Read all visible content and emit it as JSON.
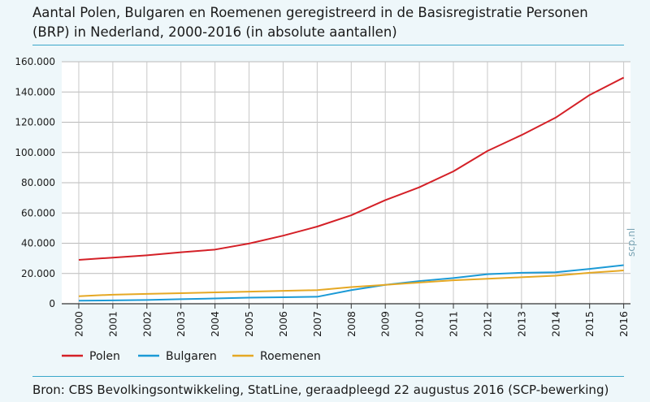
{
  "header": {
    "title": "Aantal Polen, Bulgaren en Roemenen geregistreerd in de Basisregistratie Personen (BRP) in Nederland, 2000-2016 (in absolute aantallen)"
  },
  "footer": {
    "source": "Bron: CBS Bevolkingsontwikkeling, StatLine, geraadpleegd 22 augustus 2016 (SCP-bewerking)",
    "watermark": "scp.nl"
  },
  "chart_data": {
    "type": "line",
    "title": "Aantal Polen, Bulgaren en Roemenen geregistreerd in de Basisregistratie Personen (BRP) in Nederland, 2000-2016 (in absolute aantallen)",
    "xlabel": "",
    "ylabel": "",
    "ylim": [
      0,
      160000
    ],
    "yticks": [
      0,
      20000,
      40000,
      60000,
      80000,
      100000,
      120000,
      140000,
      160000
    ],
    "ytick_labels": [
      "0",
      "20.000",
      "40.000",
      "60.000",
      "80.000",
      "100.000",
      "120.000",
      "140.000",
      "160.000"
    ],
    "categories": [
      "2000",
      "2001",
      "2002",
      "2003",
      "2004",
      "2005",
      "2006",
      "2007",
      "2008",
      "2009",
      "2010",
      "2011",
      "2012",
      "2013",
      "2014",
      "2015",
      "2016"
    ],
    "grid": true,
    "legend": "bottom",
    "series": [
      {
        "name": "Polen",
        "color": "#d42027",
        "values": [
          29000,
          30500,
          32000,
          34000,
          35800,
          39800,
          45000,
          51000,
          58500,
          68500,
          77000,
          87500,
          101000,
          111500,
          123000,
          138000,
          149500
        ]
      },
      {
        "name": "Bulgaren",
        "color": "#1b9ad6",
        "values": [
          2000,
          2200,
          2500,
          3000,
          3500,
          4000,
          4300,
          4600,
          9000,
          12500,
          15000,
          17000,
          19500,
          20500,
          20800,
          23000,
          25500
        ]
      },
      {
        "name": "Roemenen",
        "color": "#e5a824",
        "values": [
          5000,
          6000,
          6500,
          7000,
          7500,
          8000,
          8500,
          9000,
          11000,
          12500,
          14000,
          15500,
          16500,
          17500,
          18500,
          20500,
          22000
        ]
      }
    ]
  }
}
